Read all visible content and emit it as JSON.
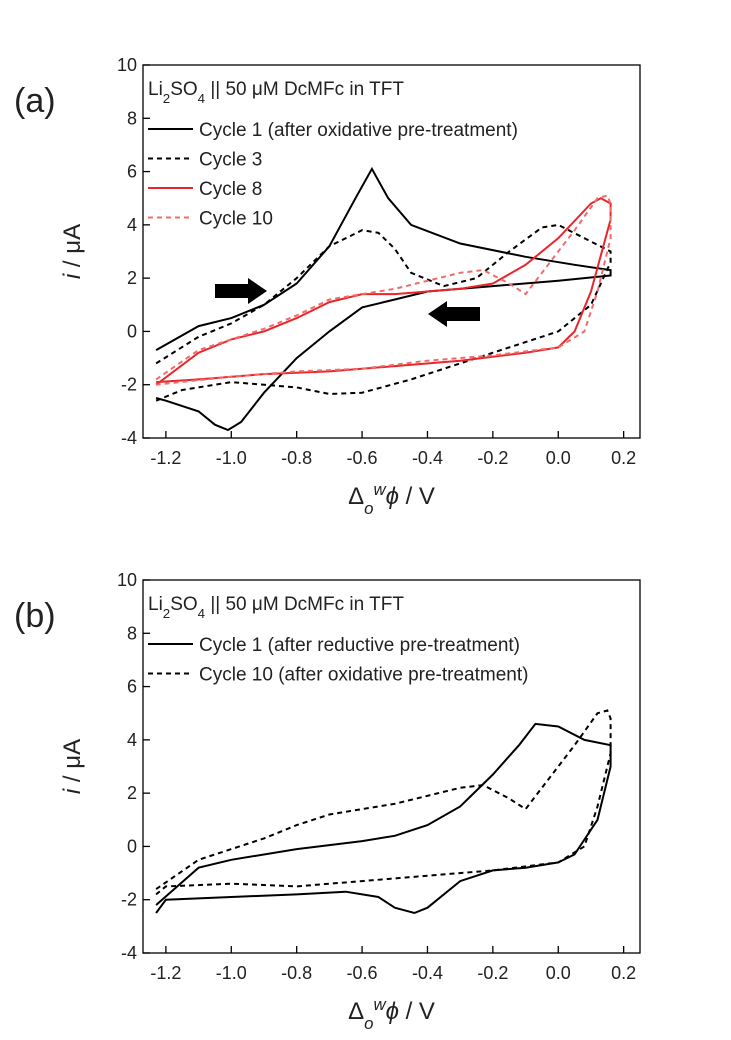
{
  "chart_data": [
    {
      "type": "line",
      "panel_label": "(a)",
      "legend_title": [
        {
          "text": "Li"
        },
        {
          "text": "2",
          "sub": true
        },
        {
          "text": "SO"
        },
        {
          "text": "4",
          "sub": true
        },
        {
          "text": " || 50 μM DcMFc in TFT"
        }
      ],
      "ylabel": [
        {
          "text": "i",
          "italic": true
        },
        {
          "text": " / μA"
        }
      ],
      "xlabel": [
        {
          "text": "Δ"
        },
        {
          "text": "o",
          "sub": true,
          "italic": true
        },
        {
          "text": "w",
          "sup": true,
          "italic": true
        },
        {
          "text": "ϕ",
          "italic": true
        },
        {
          "text": "  / V"
        }
      ],
      "xlim": [
        -1.27,
        0.25
      ],
      "ylim": [
        -4,
        10
      ],
      "xticks": [
        -1.2,
        {
          "value": -1,
          "label": "-1.0"
        },
        -0.8,
        -0.6,
        -0.4,
        -0.2,
        {
          "value": 0,
          "label": "0.0"
        },
        0.2
      ],
      "yticks": [
        -4,
        -2,
        0,
        2,
        4,
        6,
        8,
        10
      ],
      "series": [
        {
          "name": "Cycle 1 (after oxidative pre-treatment)",
          "color": "#000000",
          "dash": "solid",
          "x": [
            -1.23,
            -1.1,
            -1.0,
            -0.9,
            -0.8,
            -0.7,
            -0.62,
            -0.57,
            -0.52,
            -0.45,
            -0.3,
            -0.1,
            0.05,
            0.16,
            0.16,
            0.0,
            -0.2,
            -0.4,
            -0.5,
            -0.6,
            -0.7,
            -0.8,
            -0.9,
            -0.97,
            -1.01,
            -1.05,
            -1.1,
            -1.2,
            -1.23
          ],
          "values": [
            -0.7,
            0.2,
            0.5,
            1.0,
            1.8,
            3.2,
            5.0,
            6.1,
            5.0,
            4.0,
            3.3,
            2.8,
            2.5,
            2.3,
            2.1,
            1.9,
            1.7,
            1.5,
            1.2,
            0.9,
            0.0,
            -1.0,
            -2.3,
            -3.4,
            -3.7,
            -3.5,
            -3.0,
            -2.6,
            -2.5
          ]
        },
        {
          "name": "Cycle 3",
          "color": "#000000",
          "dash": "dashed",
          "x": [
            -1.23,
            -1.1,
            -1.0,
            -0.9,
            -0.8,
            -0.7,
            -0.6,
            -0.55,
            -0.5,
            -0.45,
            -0.35,
            -0.25,
            -0.15,
            -0.05,
            0.0,
            0.08,
            0.16,
            0.16,
            0.1,
            0.0,
            -0.1,
            -0.2,
            -0.3,
            -0.45,
            -0.6,
            -0.7,
            -0.8,
            -1.0,
            -1.15,
            -1.23
          ],
          "values": [
            -1.2,
            -0.2,
            0.3,
            1.0,
            2.0,
            3.2,
            3.8,
            3.7,
            3.1,
            2.2,
            1.7,
            2.0,
            3.0,
            3.9,
            4.0,
            3.5,
            3.0,
            2.6,
            1.0,
            0.0,
            -0.4,
            -0.8,
            -1.2,
            -1.8,
            -2.3,
            -2.35,
            -2.1,
            -1.9,
            -2.2,
            -2.6
          ]
        },
        {
          "name": "Cycle 8",
          "color": "#e8262b",
          "dash": "solid",
          "x": [
            -1.23,
            -1.1,
            -1.0,
            -0.9,
            -0.8,
            -0.7,
            -0.6,
            -0.5,
            -0.4,
            -0.3,
            -0.2,
            -0.1,
            0.0,
            0.1,
            0.13,
            0.16,
            0.16,
            0.1,
            0.05,
            0.0,
            -0.1,
            -0.3,
            -0.5,
            -0.7,
            -0.9,
            -1.1,
            -1.23
          ],
          "values": [
            -2.0,
            -0.8,
            -0.3,
            0.0,
            0.5,
            1.1,
            1.4,
            1.4,
            1.5,
            1.6,
            1.8,
            2.5,
            3.5,
            4.8,
            5.0,
            4.8,
            4.2,
            1.5,
            0.0,
            -0.6,
            -0.8,
            -1.1,
            -1.3,
            -1.5,
            -1.6,
            -1.8,
            -1.9
          ]
        },
        {
          "name": "Cycle 10",
          "color": "#f26b6b",
          "dash": "dashed",
          "x": [
            -1.23,
            -1.1,
            -1.0,
            -0.9,
            -0.8,
            -0.7,
            -0.6,
            -0.5,
            -0.4,
            -0.3,
            -0.23,
            -0.15,
            -0.1,
            -0.05,
            0.05,
            0.12,
            0.15,
            0.16,
            0.16,
            0.12,
            0.08,
            0.0,
            -0.2,
            -0.4,
            -0.6,
            -0.8,
            -1.0,
            -1.23
          ],
          "values": [
            -1.8,
            -0.7,
            -0.3,
            0.1,
            0.6,
            1.2,
            1.4,
            1.6,
            1.9,
            2.2,
            2.3,
            1.8,
            1.4,
            2.2,
            3.8,
            5.0,
            5.1,
            4.8,
            3.5,
            1.5,
            0.0,
            -0.6,
            -0.9,
            -1.1,
            -1.4,
            -1.5,
            -1.7,
            -2.0
          ]
        }
      ]
    },
    {
      "type": "line",
      "panel_label": "(b)",
      "legend_title": [
        {
          "text": "Li"
        },
        {
          "text": "2",
          "sub": true
        },
        {
          "text": "SO"
        },
        {
          "text": "4",
          "sub": true
        },
        {
          "text": " || 50 μM DcMFc in TFT"
        }
      ],
      "ylabel": [
        {
          "text": "i",
          "italic": true
        },
        {
          "text": " / μA"
        }
      ],
      "xlabel": [
        {
          "text": "Δ"
        },
        {
          "text": "o",
          "sub": true,
          "italic": true
        },
        {
          "text": "w",
          "sup": true,
          "italic": true
        },
        {
          "text": "ϕ",
          "italic": true
        },
        {
          "text": "  / V"
        }
      ],
      "xlim": [
        -1.27,
        0.25
      ],
      "ylim": [
        -4,
        10
      ],
      "xticks": [
        -1.2,
        {
          "value": -1,
          "label": "-1.0"
        },
        -0.8,
        -0.6,
        -0.4,
        -0.2,
        {
          "value": 0,
          "label": "0.0"
        },
        0.2
      ],
      "yticks": [
        -4,
        -2,
        0,
        2,
        4,
        6,
        8,
        10
      ],
      "series": [
        {
          "name": "Cycle 1 (after reductive pre-treatment)",
          "color": "#000000",
          "dash": "solid",
          "x": [
            -1.23,
            -1.1,
            -1.0,
            -0.8,
            -0.6,
            -0.5,
            -0.4,
            -0.3,
            -0.2,
            -0.12,
            -0.07,
            0.0,
            0.08,
            0.16,
            0.16,
            0.12,
            0.05,
            0.0,
            -0.1,
            -0.2,
            -0.3,
            -0.4,
            -0.44,
            -0.5,
            -0.55,
            -0.65,
            -0.8,
            -1.0,
            -1.2,
            -1.23
          ],
          "values": [
            -2.2,
            -0.8,
            -0.5,
            -0.1,
            0.2,
            0.4,
            0.8,
            1.5,
            2.7,
            3.8,
            4.6,
            4.5,
            4.0,
            3.8,
            3.0,
            1.0,
            -0.3,
            -0.6,
            -0.8,
            -0.9,
            -1.3,
            -2.3,
            -2.5,
            -2.3,
            -1.9,
            -1.7,
            -1.8,
            -1.9,
            -2.0,
            -2.5
          ]
        },
        {
          "name": "Cycle 10 (after oxidative pre-treatment)",
          "color": "#000000",
          "dash": "dashed",
          "x": [
            -1.23,
            -1.1,
            -0.9,
            -0.8,
            -0.7,
            -0.6,
            -0.5,
            -0.4,
            -0.3,
            -0.23,
            -0.15,
            -0.1,
            -0.05,
            0.05,
            0.12,
            0.15,
            0.16,
            0.16,
            0.12,
            0.08,
            0.0,
            -0.2,
            -0.4,
            -0.6,
            -0.7,
            -0.8,
            -1.0,
            -1.2,
            -1.23
          ],
          "values": [
            -1.6,
            -0.5,
            0.3,
            0.8,
            1.2,
            1.4,
            1.6,
            1.9,
            2.2,
            2.3,
            1.8,
            1.4,
            2.2,
            3.8,
            5.0,
            5.1,
            4.8,
            3.5,
            1.5,
            0.0,
            -0.6,
            -0.9,
            -1.1,
            -1.3,
            -1.4,
            -1.5,
            -1.4,
            -1.5,
            -1.8
          ]
        }
      ]
    }
  ]
}
